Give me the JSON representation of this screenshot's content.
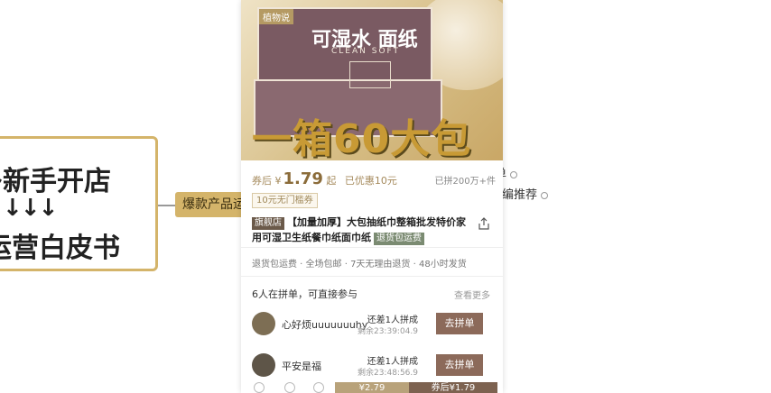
{
  "mindmap": {
    "root_line1": "多新手开店",
    "root_arrows": "↓↓↓",
    "root_line2": "运营白皮书",
    "hot_node": "爆款产品运",
    "side_node_1": "单",
    "side_node_2": "编推荐"
  },
  "product": {
    "brand_badge": "植物说",
    "package_title": "可湿水 面纸",
    "package_sub": "CLEAN SOFT",
    "slogan": "一箱60大包",
    "price_label": "券后",
    "price_symbol": "¥",
    "price": "1.79",
    "price_after": "起",
    "saved": "已优惠10元",
    "sold": "已拼200万+件",
    "coupon": "10元无门槛券",
    "flag_tag": "旗舰店",
    "title": "【加量加厚】大包抽纸巾整箱批发特价家用可湿卫生纸餐巾纸面巾纸",
    "insurance_tag": "退货包运费",
    "services": "退货包运费 · 全场包邮 · 7天无理由退货 · 48小时发货"
  },
  "group": {
    "heading": "6人在拼单，可直接参与",
    "view_more": "查看更多",
    "members": [
      {
        "name": "心好烦uuuuuuuhy",
        "need": "还差1人拼成",
        "remain": "剩余23:39:04.9",
        "button": "去拼单"
      },
      {
        "name": "平安是福",
        "need": "还差1人拼成",
        "remain": "剩余23:48:56.9",
        "button": "去拼单"
      }
    ]
  },
  "bottom": {
    "single_buy": "¥2.79",
    "group_buy": "券后¥1.79"
  }
}
